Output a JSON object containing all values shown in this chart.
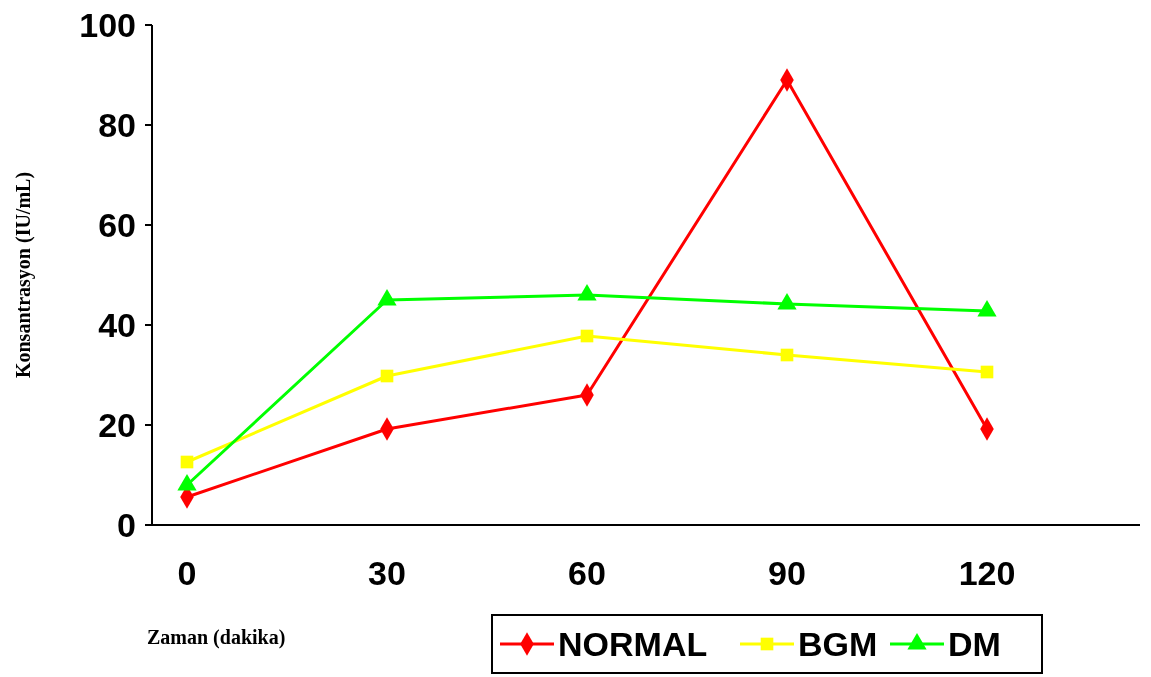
{
  "chart_data": {
    "type": "line",
    "xlabel": "Zaman (dakika)",
    "ylabel": "Konsantrasyon (IU/mL)",
    "categories": [
      "0",
      "30",
      "60",
      "90",
      "120"
    ],
    "ylim": [
      0,
      100
    ],
    "yticks": [
      0,
      20,
      40,
      60,
      80,
      100
    ],
    "grid": false,
    "legend": "bottom right",
    "series": [
      {
        "name": "NORMAL",
        "color": "#ff0000",
        "marker": "diamond",
        "values": [
          5.6,
          19.2,
          26,
          89,
          19.2
        ]
      },
      {
        "name": "BGM",
        "color": "#ffff00",
        "marker": "square",
        "values": [
          12.6,
          29.8,
          37.8,
          34,
          30.6
        ]
      },
      {
        "name": "DM",
        "color": "#00ff00",
        "marker": "triangle",
        "values": [
          8,
          45,
          46,
          44.2,
          42.8
        ]
      }
    ]
  }
}
